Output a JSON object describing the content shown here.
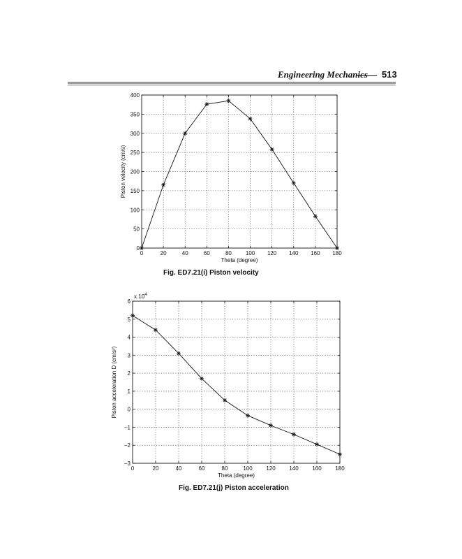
{
  "header": {
    "title": "Engineering Mechanics",
    "page_number": "513"
  },
  "figures": [
    {
      "caption": "Fig. ED7.21(i) Piston velocity"
    },
    {
      "caption": "Fig. ED7.21(j) Piston acceleration"
    }
  ],
  "chart_data": [
    {
      "type": "line",
      "xlabel": "Theta (degree)",
      "ylabel": "Piston velocity (cm/s)",
      "xlim": [
        0,
        180
      ],
      "ylim": [
        0,
        400
      ],
      "xticks": [
        0,
        20,
        40,
        60,
        80,
        100,
        120,
        140,
        160,
        180
      ],
      "yticks": [
        0,
        50,
        100,
        150,
        200,
        250,
        300,
        350,
        400
      ],
      "grid": true,
      "marker": "star",
      "x": [
        0,
        20,
        40,
        60,
        80,
        100,
        120,
        140,
        160,
        180
      ],
      "y": [
        0,
        165,
        300,
        376,
        385,
        338,
        258,
        170,
        83,
        0
      ],
      "color": "#111111"
    },
    {
      "type": "line",
      "xlabel": "Theta (degree)",
      "ylabel": "Piston acceleration D (cm/s²)",
      "multiplier": "x 10",
      "multiplier_exponent": "4",
      "xlim": [
        0,
        180
      ],
      "ylim": [
        -3,
        6
      ],
      "xticks": [
        0,
        20,
        40,
        60,
        80,
        100,
        120,
        140,
        160,
        180
      ],
      "yticks": [
        -3,
        -2,
        -1,
        0,
        1,
        2,
        3,
        4,
        5,
        6
      ],
      "grid": true,
      "marker": "star",
      "x": [
        0,
        20,
        40,
        60,
        80,
        100,
        120,
        140,
        160,
        180
      ],
      "y": [
        5.2,
        4.4,
        3.1,
        1.7,
        0.5,
        -0.35,
        -0.9,
        -1.4,
        -1.95,
        -2.5
      ],
      "color": "#111111"
    }
  ]
}
